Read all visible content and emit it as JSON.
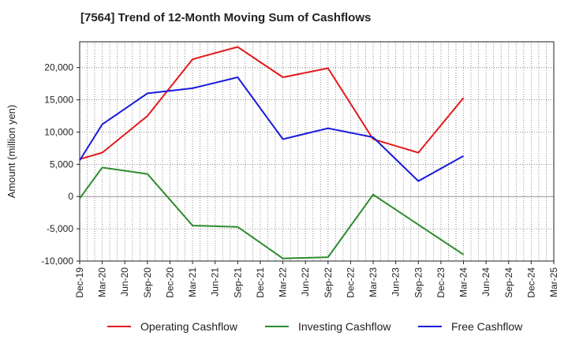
{
  "chart_data": {
    "type": "line",
    "title": "[7564]  Trend of 12-Month Moving Sum of Cashflows",
    "ylabel": "Amount (million yen)",
    "xlabel": "",
    "ylim": [
      -10000,
      24000
    ],
    "y_ticks": [
      -10000,
      -5000,
      0,
      5000,
      10000,
      15000,
      20000
    ],
    "y_tick_labels": [
      "-10,000",
      "-5,000",
      "0",
      "5,000",
      "10,000",
      "15,000",
      "20,000"
    ],
    "categories": [
      "Dec-19",
      "Mar-20",
      "Jun-20",
      "Sep-20",
      "Dec-20",
      "Mar-21",
      "Jun-21",
      "Sep-21",
      "Dec-21",
      "Mar-22",
      "Jun-22",
      "Sep-22",
      "Dec-22",
      "Mar-23",
      "Jun-23",
      "Sep-23",
      "Dec-23",
      "Mar-24",
      "Jun-24",
      "Sep-24",
      "Dec-24",
      "Mar-25"
    ],
    "grid": true,
    "legend_position": "bottom",
    "series": [
      {
        "name": "Operating Cashflow",
        "color": "#e31a1c",
        "values": [
          5800,
          6800,
          null,
          12500,
          null,
          21300,
          null,
          23200,
          null,
          18500,
          null,
          19900,
          null,
          8900,
          null,
          6800,
          null,
          15300,
          null,
          null,
          null,
          null
        ]
      },
      {
        "name": "Investing Cashflow",
        "color": "#2e8b2e",
        "values": [
          -300,
          4500,
          null,
          3500,
          null,
          -4500,
          null,
          -4700,
          null,
          -9600,
          null,
          -9400,
          null,
          300,
          null,
          null,
          null,
          -9000,
          null,
          null,
          null,
          null
        ]
      },
      {
        "name": "Free Cashflow",
        "color": "#1a1adc",
        "values": [
          5600,
          11200,
          null,
          16000,
          null,
          16800,
          null,
          18500,
          null,
          8900,
          null,
          10600,
          null,
          9200,
          null,
          2400,
          null,
          6300,
          null,
          null,
          null,
          null
        ]
      }
    ]
  }
}
